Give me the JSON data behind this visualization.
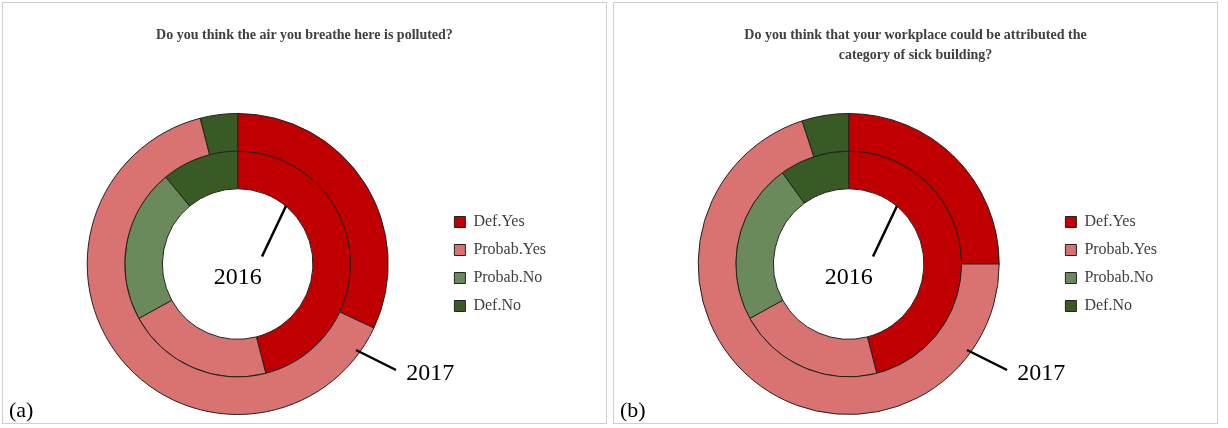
{
  "chart_data": [
    {
      "type": "donut",
      "title": "Do you think the air you breathe here is polluted?",
      "categories": [
        "Def.Yes",
        "Probab.Yes",
        "Probab.No",
        "Def.No"
      ],
      "colors": [
        "#c00000",
        "#d97372",
        "#6b8a5c",
        "#385a25"
      ],
      "series": [
        {
          "name": "2016",
          "values": [
            46,
            21,
            22,
            11
          ]
        },
        {
          "name": "2017",
          "values": [
            32,
            64,
            0,
            4
          ]
        }
      ],
      "legend": "right",
      "annotations": [
        "(a)"
      ]
    },
    {
      "type": "donut",
      "title": "Do you think that your workplace could be attributed the category of sick building?",
      "categories": [
        "Def.Yes",
        "Probab.Yes",
        "Probab.No",
        "Def.No"
      ],
      "colors": [
        "#c00000",
        "#d97372",
        "#6b8a5c",
        "#385a25"
      ],
      "series": [
        {
          "name": "2016",
          "values": [
            46,
            21,
            23,
            10
          ]
        },
        {
          "name": "2017",
          "values": [
            25,
            70,
            0,
            5
          ]
        }
      ],
      "legend": "right",
      "annotations": [
        "(b)"
      ]
    }
  ]
}
